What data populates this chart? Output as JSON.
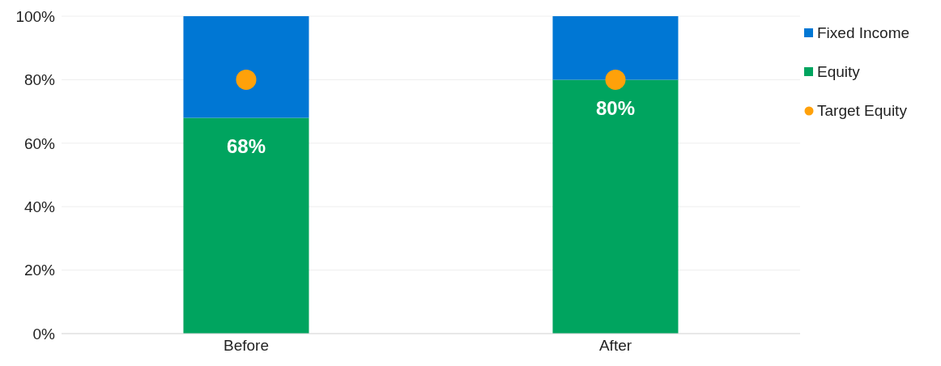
{
  "chart_data": {
    "type": "bar",
    "stacked": true,
    "categories": [
      "Before",
      "After"
    ],
    "series": [
      {
        "name": "Equity",
        "color": "#00a45f",
        "values": [
          68,
          80
        ],
        "value_labels": [
          "68%",
          "80%"
        ]
      },
      {
        "name": "Fixed Income",
        "color": "#0077d4",
        "values": [
          32,
          20
        ]
      },
      {
        "name": "Target Equity",
        "type": "scatter",
        "color": "#ffa10a",
        "values": [
          80,
          80
        ],
        "x": [
          "Before",
          "After"
        ],
        "marker": "circle"
      }
    ],
    "ylim": [
      0,
      100
    ],
    "yticks": [
      {
        "value": 0,
        "label": "0%"
      },
      {
        "value": 20,
        "label": "20%"
      },
      {
        "value": 40,
        "label": "40%"
      },
      {
        "value": 60,
        "label": "60%"
      },
      {
        "value": 80,
        "label": "80%"
      },
      {
        "value": 100,
        "label": "100%"
      }
    ],
    "grid": "y",
    "legend": "right"
  }
}
